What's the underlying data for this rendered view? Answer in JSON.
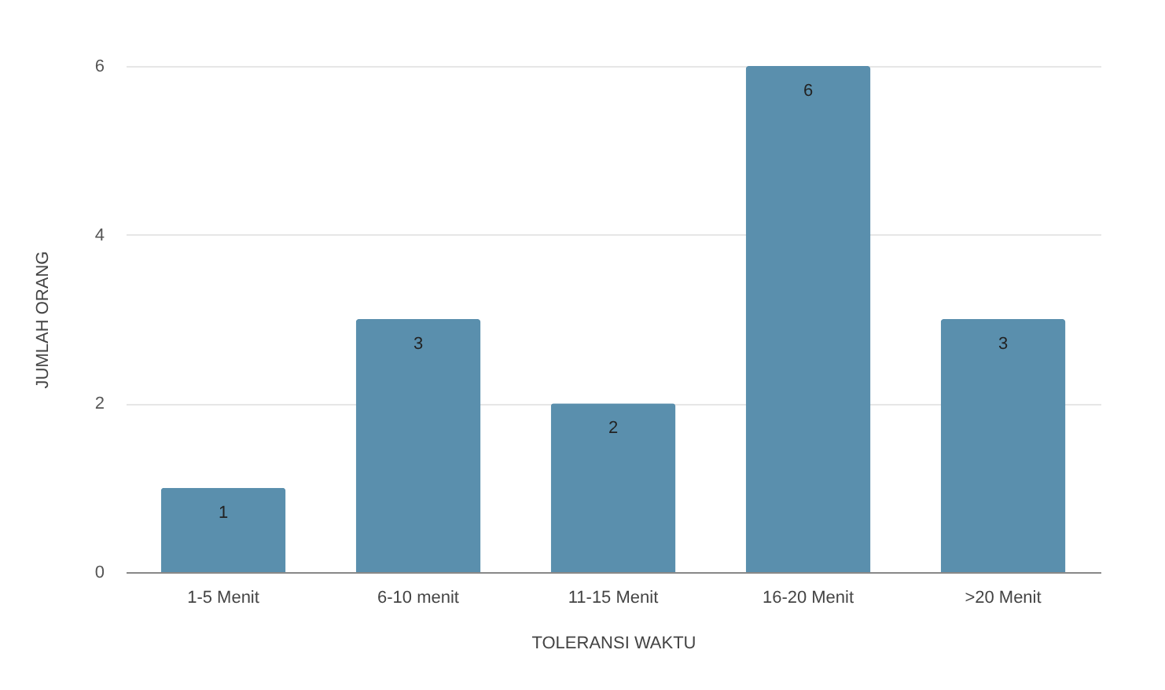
{
  "chart_data": {
    "type": "bar",
    "xlabel": "TOLERANSI WAKTU",
    "ylabel": "JUMLAH ORANG",
    "categories": [
      "1-5 Menit",
      "6-10 menit",
      "11-15 Menit",
      "16-20 Menit",
      ">20 Menit"
    ],
    "values": [
      1,
      3,
      2,
      6,
      3
    ],
    "color": "#5a8fad",
    "ylim": [
      0,
      6
    ],
    "yticks": [
      0,
      2,
      4,
      6
    ],
    "grid": "y",
    "data_labels": true
  }
}
